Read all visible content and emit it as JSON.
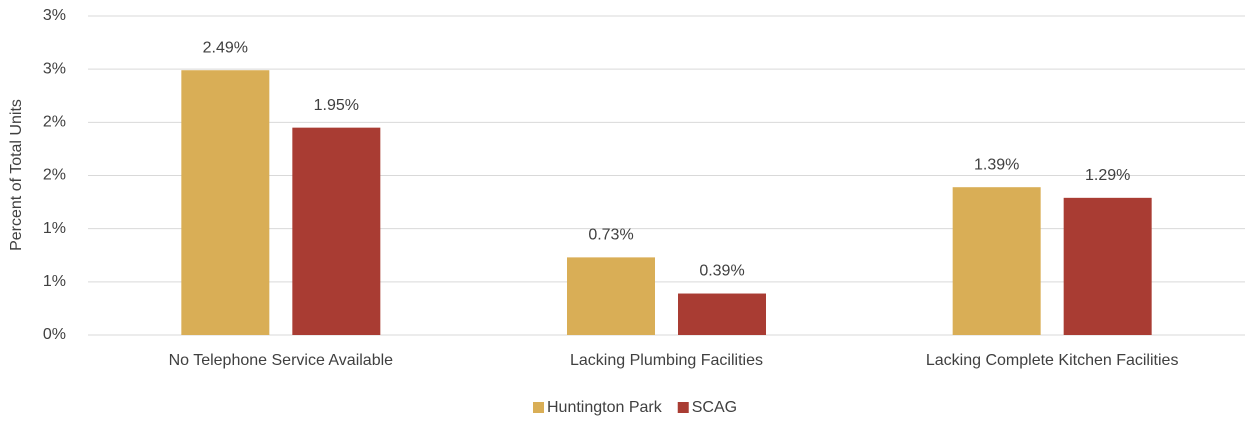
{
  "chart_data": {
    "type": "bar",
    "y_label": "Percent of Total Units",
    "categories": [
      "No Telephone Service Available",
      "Lacking Plumbing Facilities",
      "Lacking Complete Kitchen Facilities"
    ],
    "series": [
      {
        "name": "Huntington Park",
        "color": "#d9ae56",
        "values": [
          2.49,
          0.73,
          1.39
        ],
        "value_labels": [
          "2.49%",
          "0.73%",
          "1.39%"
        ]
      },
      {
        "name": "SCAG",
        "color": "#a93c33",
        "values": [
          1.95,
          0.39,
          1.29
        ],
        "value_labels": [
          "1.95%",
          "0.39%",
          "1.29%"
        ]
      }
    ],
    "ylim": [
      0,
      3
    ],
    "yticks": [
      {
        "value": 0,
        "label": "0%"
      },
      {
        "value": 0.5,
        "label": "1%"
      },
      {
        "value": 1,
        "label": "1%"
      },
      {
        "value": 1.5,
        "label": "2%"
      },
      {
        "value": 2,
        "label": "2%"
      },
      {
        "value": 2.5,
        "label": "3%"
      },
      {
        "value": 3,
        "label": "3%"
      }
    ],
    "grid": true,
    "legend": "bottom"
  }
}
